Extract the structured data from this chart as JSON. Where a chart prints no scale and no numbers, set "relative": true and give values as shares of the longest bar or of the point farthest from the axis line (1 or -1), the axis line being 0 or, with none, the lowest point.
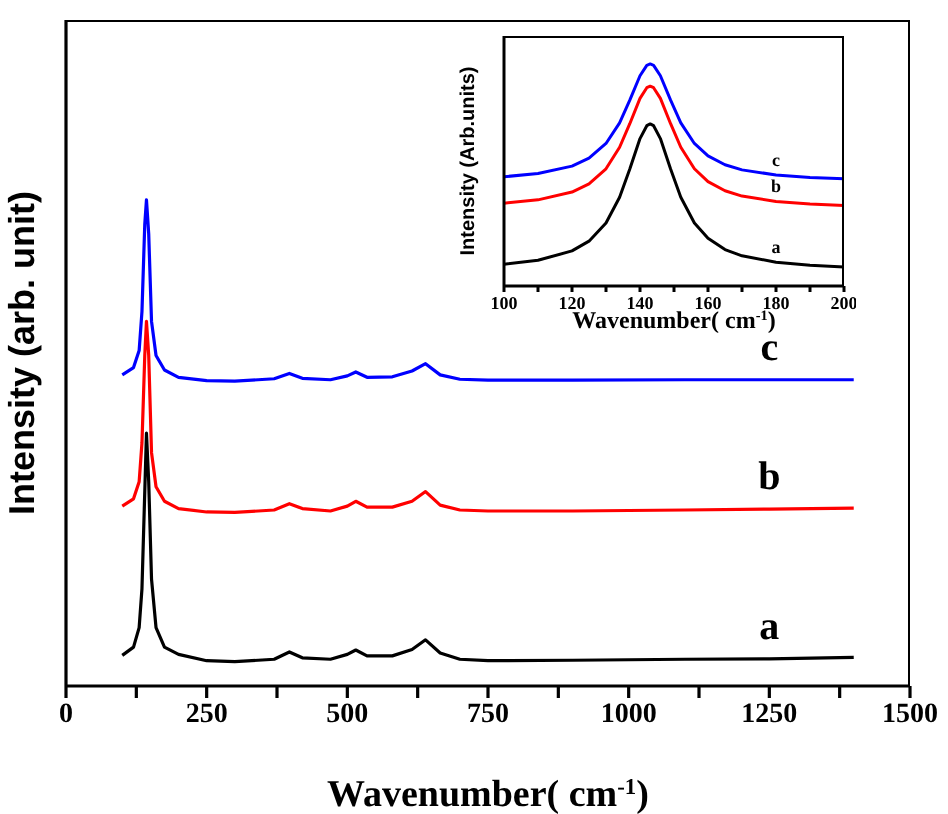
{
  "chart_data": [
    {
      "type": "line",
      "relative": true,
      "xlabel": "Wavenumber( cm$^{-1}$)",
      "ylabel": "Intensity (arb. unit)",
      "xlim": [
        0,
        1500
      ],
      "xticks": [
        0,
        {
          "value": 125,
          "label": null
        },
        250,
        {
          "value": 375,
          "label": null
        },
        500,
        {
          "value": 625,
          "label": null
        },
        750,
        {
          "value": 875,
          "label": null
        },
        1000,
        {
          "value": 1125,
          "label": null
        },
        1250,
        {
          "value": 1375,
          "label": null
        },
        1500
      ],
      "tick_labels": "x",
      "grid": false,
      "legend": false,
      "marker": "none",
      "line_style": "solid",
      "x": [
        100,
        120,
        130,
        135,
        140,
        143,
        147,
        152,
        160,
        175,
        200,
        250,
        300,
        370,
        397,
        420,
        470,
        500,
        515,
        535,
        580,
        615,
        639,
        665,
        700,
        750,
        900,
        1100,
        1250,
        1400
      ],
      "series": [
        {
          "name": "a",
          "color": "#000000",
          "values": [
            0.063,
            0.08,
            0.12,
            0.2,
            0.4,
            0.52,
            0.42,
            0.22,
            0.12,
            0.08,
            0.065,
            0.052,
            0.05,
            0.055,
            0.07,
            0.058,
            0.055,
            0.065,
            0.074,
            0.062,
            0.062,
            0.075,
            0.095,
            0.068,
            0.055,
            0.052,
            0.053,
            0.055,
            0.056,
            0.059
          ]
        },
        {
          "name": "b",
          "color": "#ff0000",
          "values": [
            0.37,
            0.385,
            0.42,
            0.5,
            0.68,
            0.75,
            0.68,
            0.48,
            0.41,
            0.38,
            0.365,
            0.358,
            0.357,
            0.362,
            0.375,
            0.365,
            0.36,
            0.37,
            0.38,
            0.368,
            0.368,
            0.38,
            0.4,
            0.372,
            0.362,
            0.36,
            0.36,
            0.362,
            0.364,
            0.366
          ]
        },
        {
          "name": "c",
          "color": "#0000ff",
          "values": [
            0.64,
            0.655,
            0.69,
            0.77,
            0.95,
            1.0,
            0.93,
            0.75,
            0.68,
            0.65,
            0.635,
            0.628,
            0.627,
            0.632,
            0.643,
            0.633,
            0.63,
            0.638,
            0.646,
            0.635,
            0.636,
            0.648,
            0.663,
            0.64,
            0.631,
            0.629,
            0.629,
            0.63,
            0.63,
            0.63
          ]
        }
      ]
    },
    {
      "type": "line",
      "relative": true,
      "xlabel": "Wavenumber( cm$^{-1}$)",
      "ylabel": "Intensity (Arb.units)",
      "xlim": [
        100,
        200
      ],
      "xticks": [
        100,
        {
          "value": 110,
          "label": null
        },
        120,
        {
          "value": 130,
          "label": null
        },
        140,
        {
          "value": 150,
          "label": null
        },
        160,
        {
          "value": 170,
          "label": null
        },
        180,
        {
          "value": 190,
          "label": null
        },
        200
      ],
      "tick_labels": "x",
      "grid": false,
      "legend": false,
      "marker": "none",
      "line_style": "solid",
      "x": [
        100,
        110,
        120,
        125,
        130,
        134,
        137,
        140,
        142,
        143,
        144,
        146,
        149,
        152,
        156,
        160,
        165,
        170,
        180,
        190,
        200
      ],
      "series": [
        {
          "name": "a",
          "color": "#000000",
          "values": [
            0.098,
            0.116,
            0.158,
            0.202,
            0.284,
            0.4,
            0.527,
            0.664,
            0.722,
            0.73,
            0.722,
            0.664,
            0.527,
            0.4,
            0.284,
            0.215,
            0.164,
            0.136,
            0.107,
            0.093,
            0.086
          ]
        },
        {
          "name": "b",
          "color": "#ff0000",
          "values": [
            0.373,
            0.388,
            0.423,
            0.46,
            0.528,
            0.625,
            0.731,
            0.845,
            0.893,
            0.9,
            0.893,
            0.845,
            0.731,
            0.625,
            0.528,
            0.47,
            0.429,
            0.405,
            0.381,
            0.369,
            0.363
          ]
        },
        {
          "name": "c",
          "color": "#0000ff",
          "values": [
            0.492,
            0.507,
            0.54,
            0.576,
            0.642,
            0.735,
            0.837,
            0.947,
            0.994,
            1.0,
            0.994,
            0.947,
            0.837,
            0.735,
            0.642,
            0.586,
            0.546,
            0.523,
            0.5,
            0.489,
            0.483
          ]
        }
      ]
    }
  ]
}
